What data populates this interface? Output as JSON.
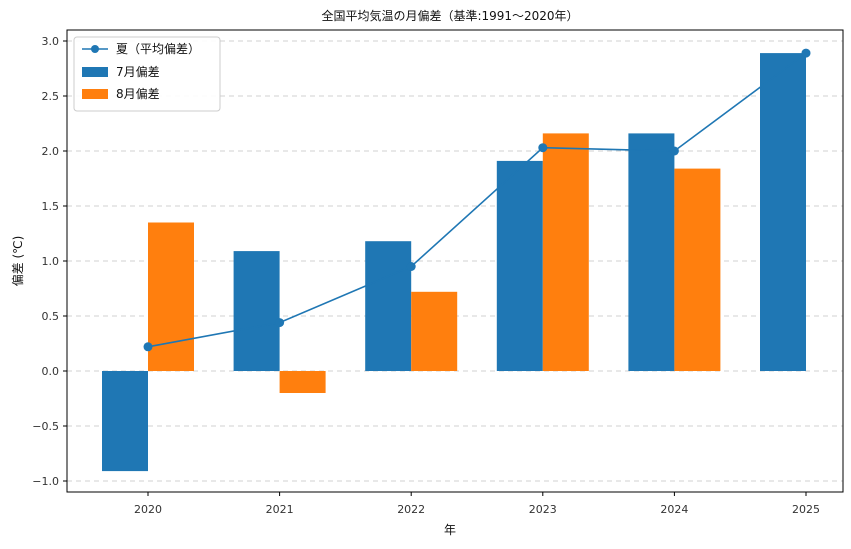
{
  "chart_data": {
    "type": "bar",
    "title": "全国平均気温の月偏差（基準:1991〜2020年）",
    "xlabel": "年",
    "ylabel": "偏差 (℃)",
    "categories": [
      "2020",
      "2021",
      "2022",
      "2023",
      "2024",
      "2025"
    ],
    "ylim": [
      -1.1,
      3.1
    ],
    "yticks": [
      -1.0,
      -0.5,
      0.0,
      0.5,
      1.0,
      1.5,
      2.0,
      2.5,
      3.0
    ],
    "ytick_labels": [
      "−1.0",
      "−0.5",
      "0.0",
      "0.5",
      "1.0",
      "1.5",
      "2.0",
      "2.5",
      "3.0"
    ],
    "grid": true,
    "legend_position": "top-left",
    "series": [
      {
        "name": "7月偏差",
        "kind": "bar",
        "color": "#1f77b4",
        "values": [
          -0.91,
          1.09,
          1.18,
          1.91,
          2.16,
          2.89
        ]
      },
      {
        "name": "8月偏差",
        "kind": "bar",
        "color": "#ff7f0e",
        "values": [
          1.35,
          -0.2,
          0.72,
          2.16,
          1.84,
          null
        ]
      },
      {
        "name": "夏（平均偏差）",
        "kind": "line",
        "color": "#1f77b4",
        "values": [
          0.22,
          0.44,
          0.95,
          2.03,
          2.0,
          2.89
        ]
      }
    ]
  }
}
